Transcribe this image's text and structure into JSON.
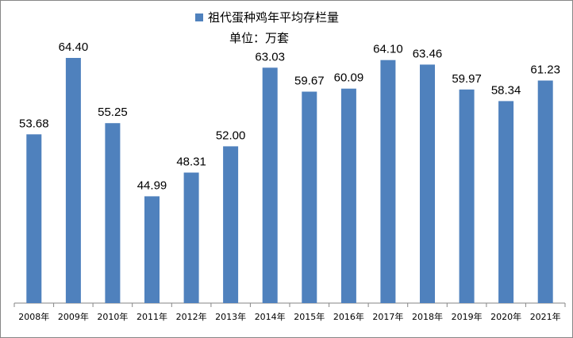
{
  "chart_data": {
    "type": "bar",
    "series": [
      {
        "name": "祖代蛋种鸡年平均存栏量",
        "color": "#4f81bd",
        "values": [
          53.68,
          64.4,
          55.25,
          44.99,
          48.31,
          52.0,
          63.03,
          59.67,
          60.09,
          64.1,
          63.46,
          59.97,
          58.34,
          61.23
        ]
      }
    ],
    "categories": [
      "2008年",
      "2009年",
      "2010年",
      "2011年",
      "2012年",
      "2013年",
      "2014年",
      "2015年",
      "2016年",
      "2017年",
      "2018年",
      "2019年",
      "2020年",
      "2021年"
    ],
    "value_labels": [
      "53.68",
      "64.40",
      "55.25",
      "44.99",
      "48.31",
      "52.00",
      "63.03",
      "59.67",
      "60.09",
      "64.10",
      "63.46",
      "59.97",
      "58.34",
      "61.23"
    ],
    "unit_label": "单位：万套",
    "ylim": [
      30,
      70
    ],
    "grid": false,
    "legend_position": "top-center"
  }
}
